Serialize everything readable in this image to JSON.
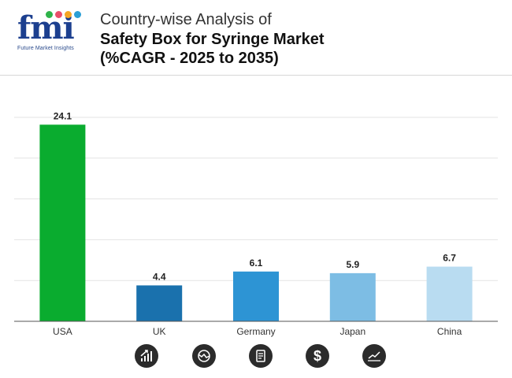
{
  "brand": {
    "logo_text": "fmi",
    "logo_subtitle": "Future Market Insights",
    "dot_colors": [
      "#2fb34a",
      "#e94e6a",
      "#f6a623",
      "#2a9fd6"
    ]
  },
  "header": {
    "title_line1": "Country-wise Analysis of",
    "title_line2": "Safety Box for Syringe Market",
    "title_line3": "(%CAGR - 2025 to 2035)"
  },
  "chart_data": {
    "type": "bar",
    "categories": [
      "USA",
      "UK",
      "Germany",
      "Japan",
      "China"
    ],
    "values": [
      24.1,
      4.4,
      6.1,
      5.9,
      6.7
    ],
    "value_labels": [
      "24.1",
      "4.4",
      "6.1",
      "5.9",
      "6.7"
    ],
    "colors": [
      "#0aac2f",
      "#1a71ad",
      "#2d94d4",
      "#7dbde4",
      "#b9dcf1"
    ],
    "ylim": [
      0,
      25
    ],
    "grid": true,
    "xlabel": "",
    "ylabel": ""
  },
  "icons": [
    "growth-chart-icon",
    "trend-cycle-icon",
    "report-document-icon",
    "dollar-icon",
    "line-chart-icon"
  ],
  "colors": {
    "icon_bg": "#2b2b2b",
    "grid": "#e3e3e3",
    "axis": "#555555"
  }
}
